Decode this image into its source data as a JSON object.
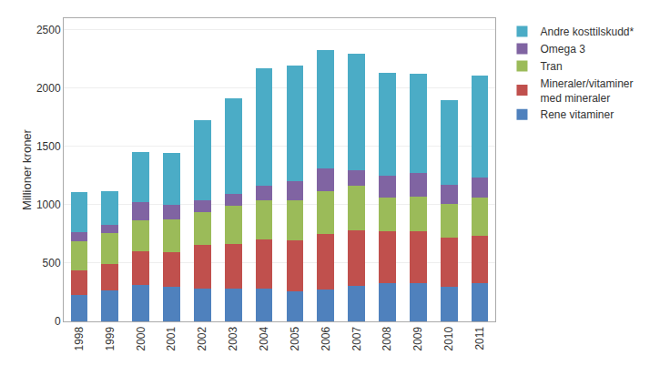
{
  "chart_data": {
    "type": "bar",
    "stacked": true,
    "categories": [
      "1998",
      "1999",
      "2000",
      "2001",
      "2002",
      "2003",
      "2004",
      "2005",
      "2006",
      "2007",
      "2008",
      "2009",
      "2010",
      "2011"
    ],
    "series": [
      {
        "name": "Rene vitaminer",
        "color": "#4F81BD",
        "values": [
          225,
          265,
          315,
          300,
          285,
          285,
          285,
          255,
          270,
          305,
          325,
          325,
          300,
          325
        ]
      },
      {
        "name": "Mineraler/vitaminer\nmed mineraler",
        "color": "#C0504D",
        "values": [
          215,
          230,
          290,
          295,
          370,
          375,
          415,
          440,
          480,
          475,
          450,
          450,
          420,
          410
        ]
      },
      {
        "name": "Tran",
        "color": "#9BBB59",
        "values": [
          250,
          260,
          265,
          280,
          280,
          330,
          340,
          340,
          370,
          380,
          290,
          295,
          285,
          325
        ]
      },
      {
        "name": "Omega 3",
        "color": "#8064A2",
        "values": [
          75,
          75,
          155,
          125,
          100,
          100,
          120,
          170,
          190,
          135,
          185,
          200,
          170,
          175
        ]
      },
      {
        "name": "Andre kosttilskudd*",
        "color": "#4BACC6",
        "values": [
          340,
          290,
          430,
          445,
          690,
          820,
          1010,
          990,
          1020,
          1000,
          880,
          855,
          720,
          875
        ]
      }
    ],
    "ylabel": "Millioner kroner",
    "ylim": [
      0,
      2600
    ],
    "yticks": [
      0,
      500,
      1000,
      1500,
      2000,
      2500
    ],
    "grid": true,
    "legend": "upper right"
  }
}
